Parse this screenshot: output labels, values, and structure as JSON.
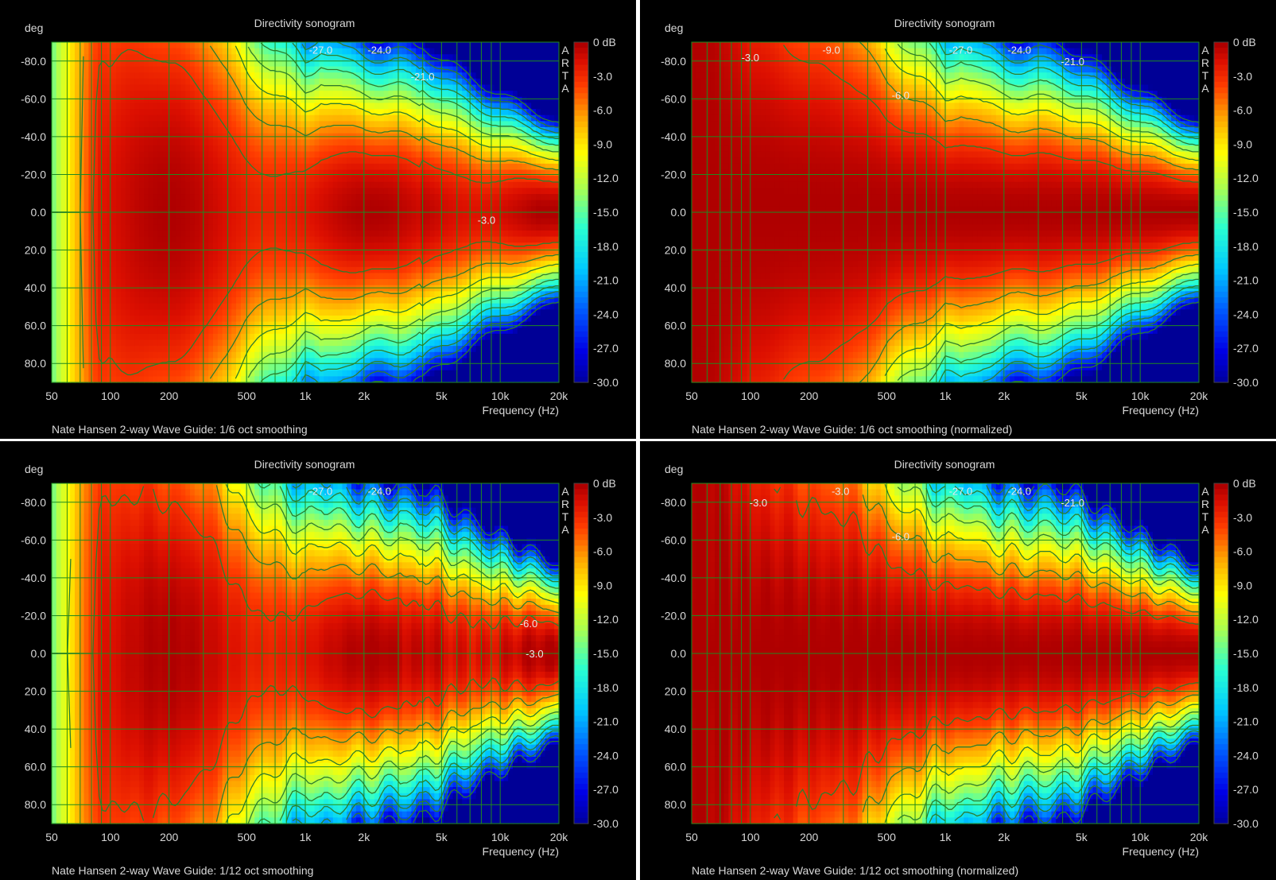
{
  "colors": {
    "background": "#000000",
    "grid": "#1f8a1f",
    "contour": "#2e7d2e",
    "text": "#d8d8d8"
  },
  "chart_data": [
    {
      "type": "heatmap",
      "title": "Directivity sonogram",
      "xlabel": "Frequency (Hz)",
      "ylabel": "deg",
      "x_scale": "log",
      "xlim": [
        50,
        20000
      ],
      "ylim": [
        -90,
        90
      ],
      "x_ticks": [
        "50",
        "100",
        "200",
        "500",
        "1k",
        "2k",
        "5k",
        "10k",
        "20k"
      ],
      "x_tick_values": [
        50,
        100,
        200,
        500,
        1000,
        2000,
        5000,
        10000,
        20000
      ],
      "y_ticks": [
        "-80.0",
        "-60.0",
        "-40.0",
        "-20.0",
        "0.0",
        "20.0",
        "40.0",
        "60.0",
        "80.0"
      ],
      "y_tick_values": [
        -80,
        -60,
        -40,
        -20,
        0,
        20,
        40,
        60,
        80
      ],
      "colorbar_labels": [
        "0 dB",
        "-3.0",
        "-6.0",
        "-9.0",
        "-12.0",
        "-15.0",
        "-18.0",
        "-21.0",
        "-24.0",
        "-27.0",
        "-30.0"
      ],
      "colorbar_range_db": [
        -30,
        0
      ],
      "watermark": "ARTA",
      "footer": "Nate Hansen 2-way Wave Guide: 1/6 oct smoothing",
      "normalized": false,
      "contour_labels": [
        {
          "text": "-27.0",
          "x": 1200,
          "y": -86
        },
        {
          "text": "-24.0",
          "x": 2400,
          "y": -86
        },
        {
          "text": "-21.0",
          "x": 4000,
          "y": -72
        },
        {
          "text": "-3.0",
          "x": 8500,
          "y": 4
        }
      ]
    },
    {
      "type": "heatmap",
      "title": "Directivity sonogram",
      "xlabel": "Frequency (Hz)",
      "ylabel": "deg",
      "x_scale": "log",
      "xlim": [
        50,
        20000
      ],
      "ylim": [
        -90,
        90
      ],
      "x_ticks": [
        "50",
        "100",
        "200",
        "500",
        "1k",
        "2k",
        "5k",
        "10k",
        "20k"
      ],
      "x_tick_values": [
        50,
        100,
        200,
        500,
        1000,
        2000,
        5000,
        10000,
        20000
      ],
      "y_ticks": [
        "-80.0",
        "-60.0",
        "-40.0",
        "-20.0",
        "0.0",
        "20.0",
        "40.0",
        "60.0",
        "80.0"
      ],
      "y_tick_values": [
        -80,
        -60,
        -40,
        -20,
        0,
        20,
        40,
        60,
        80
      ],
      "colorbar_labels": [
        "0 dB",
        "-3.0",
        "-6.0",
        "-9.0",
        "-12.0",
        "-15.0",
        "-18.0",
        "-21.0",
        "-24.0",
        "-27.0",
        "-30.0"
      ],
      "colorbar_range_db": [
        -30,
        0
      ],
      "watermark": "ARTA",
      "footer": "Nate Hansen 2-way Wave Guide: 1/6 oct smoothing (normalized)",
      "normalized": true,
      "contour_labels": [
        {
          "text": "-3.0",
          "x": 100,
          "y": -82
        },
        {
          "text": "-9.0",
          "x": 260,
          "y": -86
        },
        {
          "text": "-6.0",
          "x": 590,
          "y": -62
        },
        {
          "text": "-27.0",
          "x": 1200,
          "y": -86
        },
        {
          "text": "-24.0",
          "x": 2400,
          "y": -86
        },
        {
          "text": "-21.0",
          "x": 4500,
          "y": -80
        }
      ]
    },
    {
      "type": "heatmap",
      "title": "Directivity sonogram",
      "xlabel": "Frequency (Hz)",
      "ylabel": "deg",
      "x_scale": "log",
      "xlim": [
        50,
        20000
      ],
      "ylim": [
        -90,
        90
      ],
      "x_ticks": [
        "50",
        "100",
        "200",
        "500",
        "1k",
        "2k",
        "5k",
        "10k",
        "20k"
      ],
      "x_tick_values": [
        50,
        100,
        200,
        500,
        1000,
        2000,
        5000,
        10000,
        20000
      ],
      "y_ticks": [
        "-80.0",
        "-60.0",
        "-40.0",
        "-20.0",
        "0.0",
        "20.0",
        "40.0",
        "60.0",
        "80.0"
      ],
      "y_tick_values": [
        -80,
        -60,
        -40,
        -20,
        0,
        20,
        40,
        60,
        80
      ],
      "colorbar_labels": [
        "0 dB",
        "-3.0",
        "-6.0",
        "-9.0",
        "-12.0",
        "-15.0",
        "-18.0",
        "-21.0",
        "-24.0",
        "-27.0",
        "-30.0"
      ],
      "colorbar_range_db": [
        -30,
        0
      ],
      "watermark": "ARTA",
      "footer": "Nate Hansen 2-way Wave Guide: 1/12 oct smoothing",
      "normalized": false,
      "contour_labels": [
        {
          "text": "-27.0",
          "x": 1200,
          "y": -86
        },
        {
          "text": "-24.0",
          "x": 2400,
          "y": -86
        },
        {
          "text": "-6.0",
          "x": 14000,
          "y": -16
        },
        {
          "text": "-3.0",
          "x": 15000,
          "y": 0
        }
      ]
    },
    {
      "type": "heatmap",
      "title": "Directivity sonogram",
      "xlabel": "Frequency (Hz)",
      "ylabel": "deg",
      "x_scale": "log",
      "xlim": [
        50,
        20000
      ],
      "ylim": [
        -90,
        90
      ],
      "x_ticks": [
        "50",
        "100",
        "200",
        "500",
        "1k",
        "2k",
        "5k",
        "10k",
        "20k"
      ],
      "x_tick_values": [
        50,
        100,
        200,
        500,
        1000,
        2000,
        5000,
        10000,
        20000
      ],
      "y_ticks": [
        "-80.0",
        "-60.0",
        "-40.0",
        "-20.0",
        "0.0",
        "20.0",
        "40.0",
        "60.0",
        "80.0"
      ],
      "y_tick_values": [
        -80,
        -60,
        -40,
        -20,
        0,
        20,
        40,
        60,
        80
      ],
      "colorbar_labels": [
        "0 dB",
        "-3.0",
        "-6.0",
        "-9.0",
        "-12.0",
        "-15.0",
        "-18.0",
        "-21.0",
        "-24.0",
        "-27.0",
        "-30.0"
      ],
      "colorbar_range_db": [
        -30,
        0
      ],
      "watermark": "ARTA",
      "footer": "Nate Hansen 2-way Wave Guide: 1/12 oct smoothing (normalized)",
      "normalized": true,
      "contour_labels": [
        {
          "text": "-3.0",
          "x": 110,
          "y": -80
        },
        {
          "text": "-3.0",
          "x": 290,
          "y": -86
        },
        {
          "text": "-6.0",
          "x": 590,
          "y": -62
        },
        {
          "text": "-27.0",
          "x": 1200,
          "y": -86
        },
        {
          "text": "-24.0",
          "x": 2400,
          "y": -86
        },
        {
          "text": "-21.0",
          "x": 4500,
          "y": -80
        }
      ]
    }
  ]
}
